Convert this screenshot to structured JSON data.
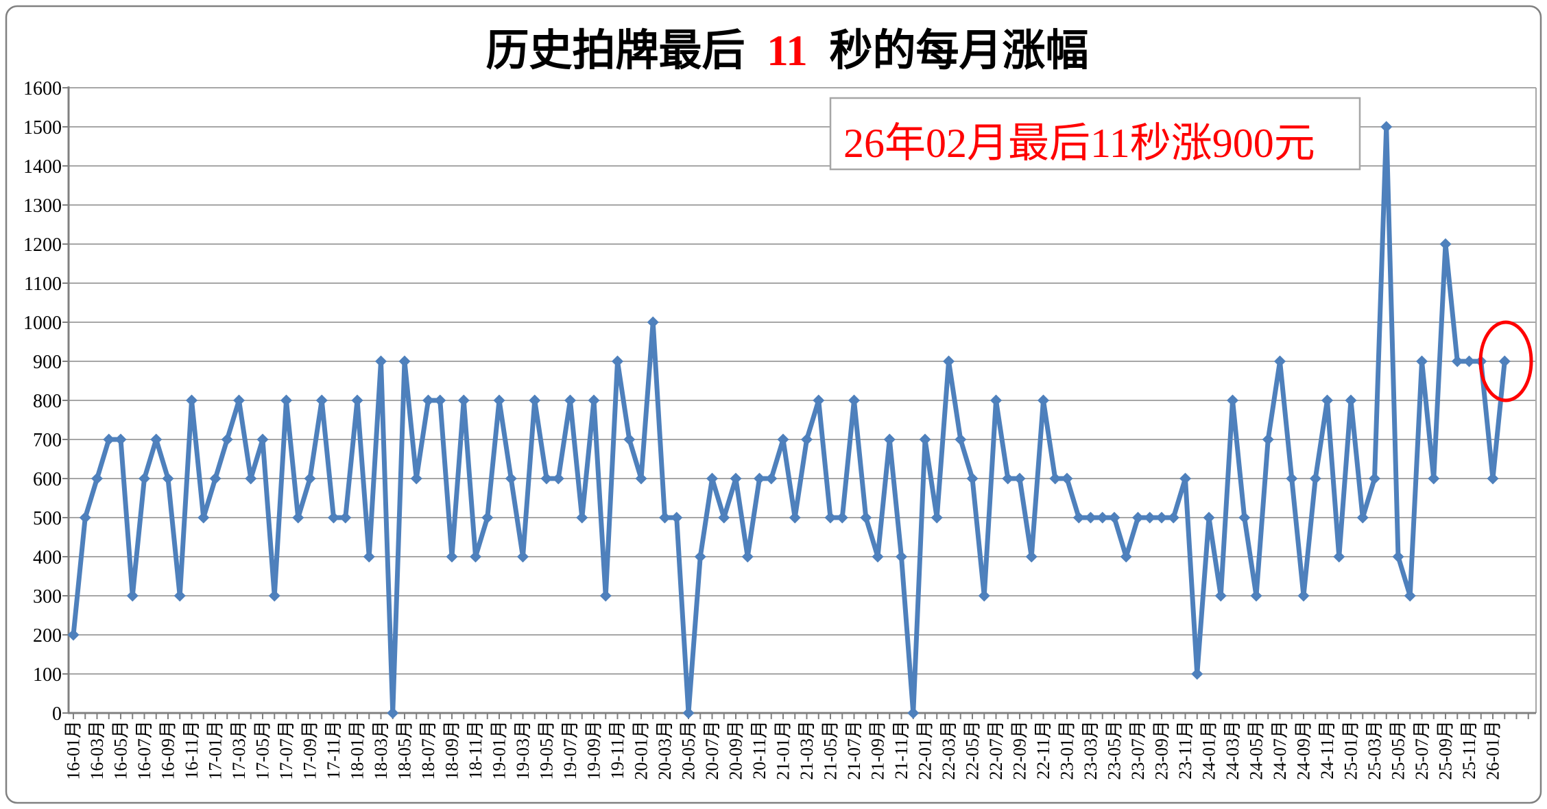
{
  "title": {
    "text_before": "历史拍牌最后",
    "highlight": "11",
    "text_after": "秒的每月涨幅"
  },
  "annotation": {
    "text": "26年02月最后11秒涨900元"
  },
  "colors": {
    "series": "#4E80BC",
    "marker": "#4E80BC",
    "title_text": "#000000",
    "title_highlight": "#FF0000",
    "annotation_text": "#FF0000",
    "annotation_border": "#A6A6A6",
    "highlight_circle": "#FF0000",
    "gridline": "#A6A6A6",
    "axis": "#808080",
    "tick_label": "#000000",
    "frame_border": "#808080"
  },
  "chart_data": {
    "type": "line",
    "title": "历史拍牌最后 11 秒的每月涨幅",
    "marker": "diamond",
    "legend": "none",
    "grid": "horizontal",
    "ylim": [
      0,
      1600
    ],
    "ytick_step": 100,
    "ytick_labels": [
      "0",
      "100",
      "200",
      "300",
      "400",
      "500",
      "600",
      "700",
      "800",
      "900",
      "1000",
      "1100",
      "1200",
      "1300",
      "1400",
      "1500",
      "1600"
    ],
    "xtick_label_every": 2,
    "x_label_format": "YY-MM月",
    "highlighted_point": {
      "category": "26-02月",
      "value": 900,
      "index": 121
    },
    "categories": [
      "16-01月",
      "16-02月",
      "16-03月",
      "16-04月",
      "16-05月",
      "16-06月",
      "16-07月",
      "16-08月",
      "16-09月",
      "16-10月",
      "16-11月",
      "16-12月",
      "17-01月",
      "17-02月",
      "17-03月",
      "17-04月",
      "17-05月",
      "17-06月",
      "17-07月",
      "17-08月",
      "17-09月",
      "17-10月",
      "17-11月",
      "17-12月",
      "18-01月",
      "18-02月",
      "18-03月",
      "18-04月",
      "18-05月",
      "18-06月",
      "18-07月",
      "18-08月",
      "18-09月",
      "18-10月",
      "18-11月",
      "18-12月",
      "19-01月",
      "19-02月",
      "19-03月",
      "19-04月",
      "19-05月",
      "19-06月",
      "19-07月",
      "19-08月",
      "19-09月",
      "19-10月",
      "19-11月",
      "19-12月",
      "20-01月",
      "20-02月",
      "20-03月",
      "20-04月",
      "20-05月",
      "20-06月",
      "20-07月",
      "20-08月",
      "20-09月",
      "20-10月",
      "20-11月",
      "20-12月",
      "21-01月",
      "21-02月",
      "21-03月",
      "21-04月",
      "21-05月",
      "21-06月",
      "21-07月",
      "21-08月",
      "21-09月",
      "21-10月",
      "21-11月",
      "21-12月",
      "22-01月",
      "22-02月",
      "22-03月",
      "22-04月",
      "22-05月",
      "22-06月",
      "22-07月",
      "22-08月",
      "22-09月",
      "22-10月",
      "22-11月",
      "22-12月",
      "23-01月",
      "23-02月",
      "23-03月",
      "23-04月",
      "23-05月",
      "23-06月",
      "23-07月",
      "23-08月",
      "23-09月",
      "23-10月",
      "23-11月",
      "23-12月",
      "24-01月",
      "24-02月",
      "24-03月",
      "24-04月",
      "24-05月",
      "24-06月",
      "24-07月",
      "24-08月",
      "24-09月",
      "24-10月",
      "24-11月",
      "24-12月",
      "25-01月",
      "25-02月",
      "25-03月",
      "25-04月",
      "25-05月",
      "25-06月",
      "25-07月",
      "25-08月",
      "25-09月",
      "25-10月",
      "25-11月",
      "25-12月",
      "26-01月",
      "26-02月"
    ],
    "values": [
      200,
      500,
      600,
      700,
      700,
      300,
      600,
      700,
      600,
      300,
      800,
      500,
      600,
      700,
      800,
      600,
      700,
      300,
      800,
      500,
      600,
      800,
      500,
      500,
      800,
      400,
      900,
      0,
      900,
      600,
      800,
      800,
      400,
      800,
      400,
      500,
      800,
      600,
      400,
      800,
      600,
      600,
      800,
      500,
      800,
      300,
      900,
      700,
      600,
      1000,
      500,
      500,
      0,
      400,
      600,
      500,
      600,
      400,
      600,
      600,
      700,
      500,
      700,
      800,
      500,
      500,
      800,
      500,
      400,
      700,
      400,
      0,
      700,
      500,
      900,
      700,
      600,
      300,
      800,
      600,
      600,
      400,
      800,
      600,
      600,
      500,
      500,
      500,
      500,
      400,
      500,
      500,
      500,
      500,
      600,
      100,
      500,
      300,
      800,
      500,
      300,
      700,
      900,
      600,
      300,
      600,
      800,
      400,
      800,
      500,
      600,
      1500,
      400,
      300,
      900,
      600,
      1200,
      900,
      900,
      900,
      600,
      900
    ]
  }
}
